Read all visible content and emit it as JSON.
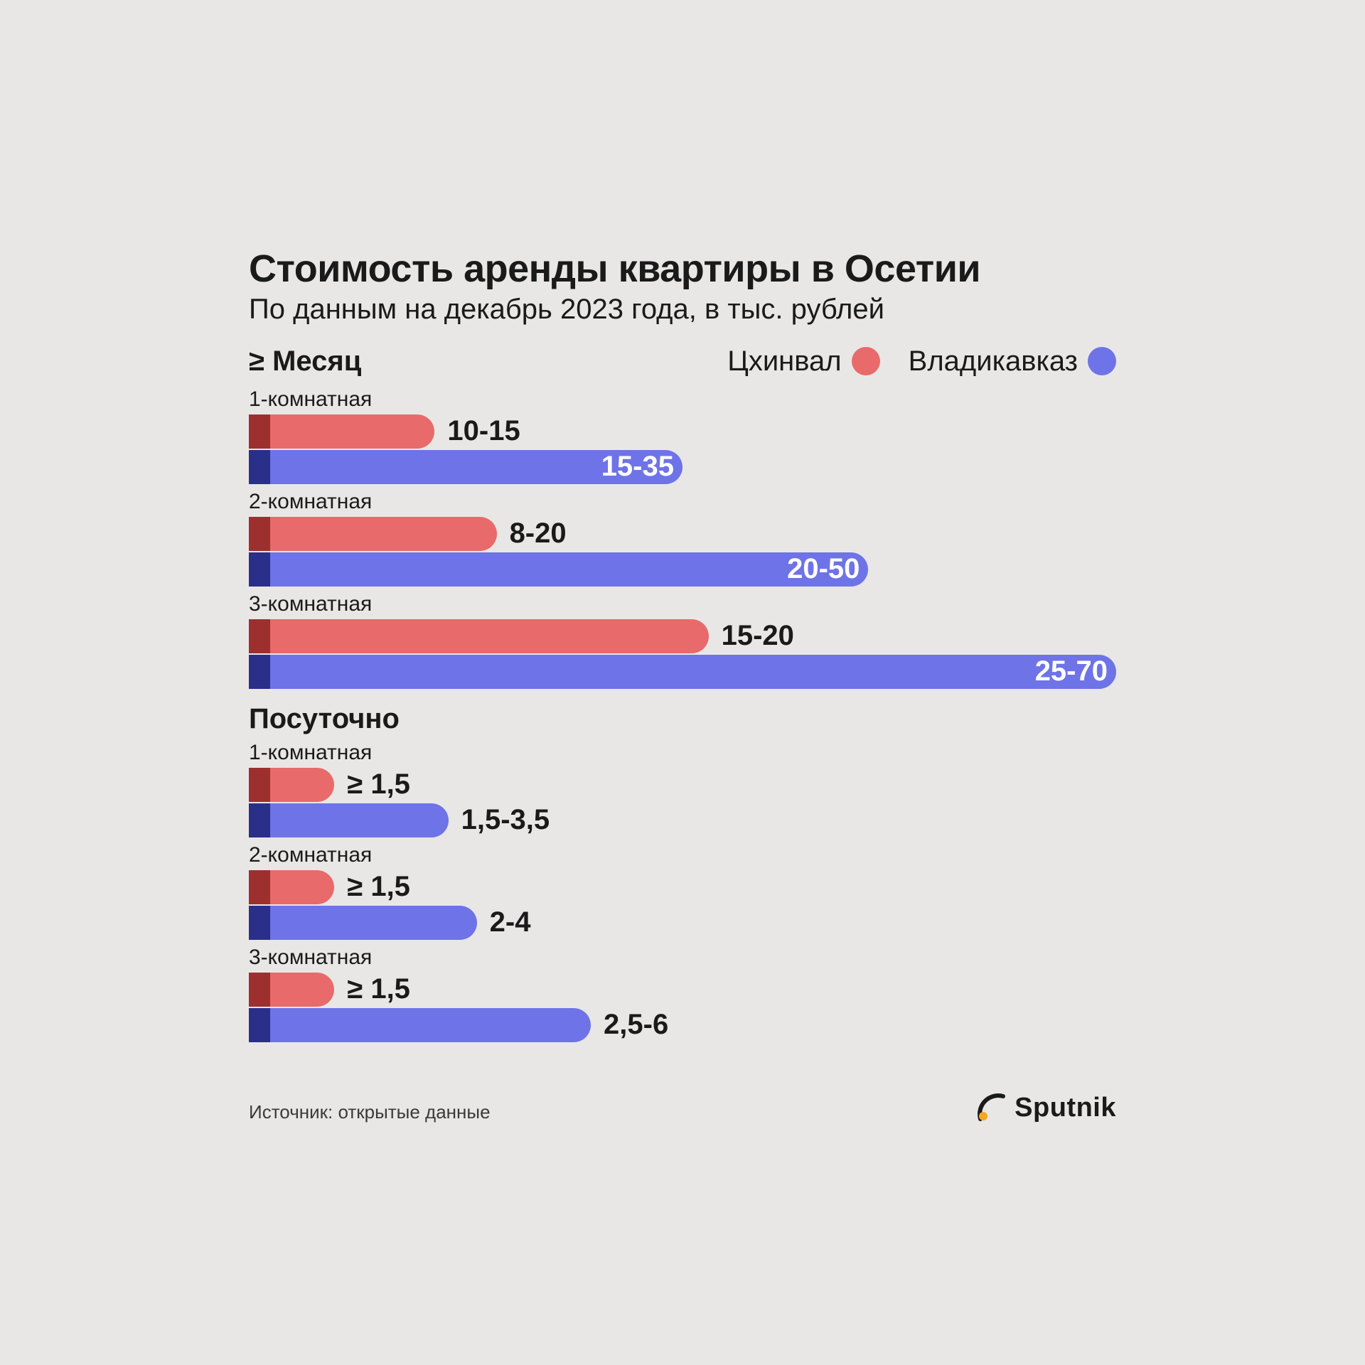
{
  "title": "Стоимость аренды квартиры в Осетии",
  "subtitle": "По данным на декабрь 2023 года, в тыс. рублей",
  "legend": {
    "city1": {
      "label": "Цхинвал",
      "color": "#e96a6a",
      "accent": "#9e2f2f",
      "labelColor": "#1a1a1a"
    },
    "city2": {
      "label": "Владикавказ",
      "color": "#6e73e8",
      "accent": "#2a2f8a",
      "labelColor": "#6e73e8"
    }
  },
  "sections": [
    {
      "heading": "≥ Месяц",
      "maxValue": 70,
      "groups": [
        {
          "label": "1-комнатная",
          "bars": [
            {
              "city": "city1",
              "value": 15,
              "display": "10-15",
              "labelMode": "outside"
            },
            {
              "city": "city2",
              "value": 35,
              "display": "15-35",
              "labelMode": "inside"
            }
          ]
        },
        {
          "label": "2-комнатная",
          "bars": [
            {
              "city": "city1",
              "value": 20,
              "display": "8-20",
              "labelMode": "outside"
            },
            {
              "city": "city2",
              "value": 50,
              "display": "20-50",
              "labelMode": "inside"
            }
          ]
        },
        {
          "label": "3-комнатная",
          "bars": [
            {
              "city": "city1",
              "value": 20,
              "display": "15-20",
              "labelMode": "outside",
              "widthOverridePct": 53
            },
            {
              "city": "city2",
              "value": 70,
              "display": "25-70",
              "labelMode": "inside"
            }
          ]
        }
      ]
    },
    {
      "heading": "Посуточно",
      "maxValue": 70,
      "scale": 4.6,
      "groups": [
        {
          "label": "1-комнатная",
          "bars": [
            {
              "city": "city1",
              "value": 1.5,
              "display": "≥ 1,5",
              "labelMode": "outside"
            },
            {
              "city": "city2",
              "value": 3.5,
              "display": "1,5-3,5",
              "labelMode": "outside",
              "labelBlack": true
            }
          ]
        },
        {
          "label": "2-комнатная",
          "bars": [
            {
              "city": "city1",
              "value": 1.5,
              "display": "≥ 1,5",
              "labelMode": "outside"
            },
            {
              "city": "city2",
              "value": 4,
              "display": "2-4",
              "labelMode": "outside",
              "labelBlack": true
            }
          ]
        },
        {
          "label": "3-комнатная",
          "bars": [
            {
              "city": "city1",
              "value": 1.5,
              "display": "≥ 1,5",
              "labelMode": "outside"
            },
            {
              "city": "city2",
              "value": 6,
              "display": "2,5-6",
              "labelMode": "outside",
              "labelBlack": true
            }
          ]
        }
      ]
    }
  ],
  "footer": {
    "source": "Источник: открытые данные",
    "logoText": "Sputnik",
    "logoColor": "#1a1a1a",
    "logoAccent": "#f5a623"
  },
  "style": {
    "background": "#e8e7e6",
    "barHeight": 48,
    "accentWidth": 30,
    "chartFullWidthPx": 1220
  }
}
